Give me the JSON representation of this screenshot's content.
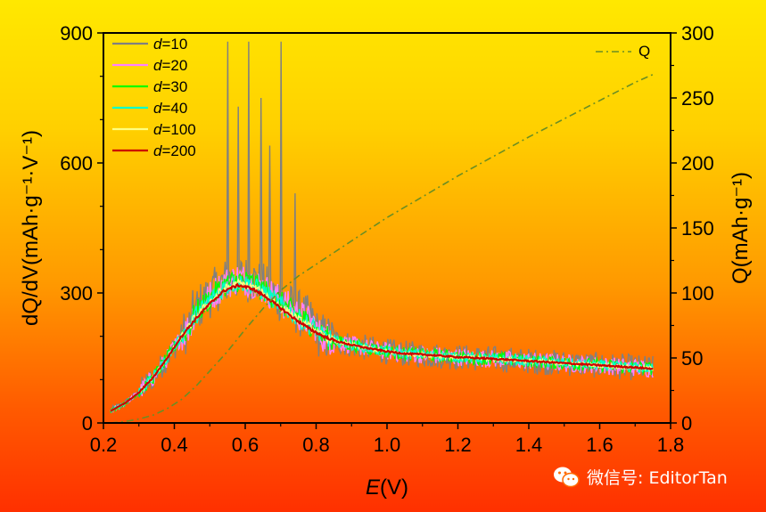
{
  "chart_data": {
    "type": "line",
    "xlabel": "E(V)",
    "xlabel_italic": "E",
    "xlabel_unit": "(V)",
    "ylabel_left": "dQ/dV(mAh·g⁻¹·V⁻¹)",
    "ylabel_right": "Q(mAh·g⁻¹)",
    "xlim": [
      0.2,
      1.8
    ],
    "ylim_left": [
      0,
      900
    ],
    "ylim_right": [
      0,
      300
    ],
    "xticks": [
      "0.2",
      "0.4",
      "0.6",
      "0.8",
      "1.0",
      "1.2",
      "1.4",
      "1.6",
      "1.8"
    ],
    "yticks_left": [
      "0",
      "300",
      "600",
      "900"
    ],
    "yticks_right": [
      "0",
      "50",
      "100",
      "150",
      "200",
      "250",
      "300"
    ],
    "legend_position": "top-left",
    "series": [
      {
        "name": "d=10",
        "label_italic": "d",
        "label_rest": "=10",
        "color": "#808080",
        "noise": 55,
        "spikes": [
          [
            0.55,
            880
          ],
          [
            0.61,
            880
          ],
          [
            0.7,
            880
          ],
          [
            0.645,
            750
          ],
          [
            0.58,
            730
          ],
          [
            0.67,
            640
          ],
          [
            0.74,
            530
          ]
        ]
      },
      {
        "name": "d=20",
        "label_italic": "d",
        "label_rest": "=20",
        "color": "#ff80ff",
        "noise": 38,
        "spikes": []
      },
      {
        "name": "d=30",
        "label_italic": "d",
        "label_rest": "=30",
        "color": "#00ff00",
        "noise": 28,
        "spikes": []
      },
      {
        "name": "d=40",
        "label_italic": "d",
        "label_rest": "=40",
        "color": "#00ffcc",
        "noise": 22,
        "spikes": []
      },
      {
        "name": "d=100",
        "label_italic": "d",
        "label_rest": "=100",
        "color": "#ffff80",
        "noise": 10,
        "spikes": []
      },
      {
        "name": "d=200",
        "label_italic": "d",
        "label_rest": "=200",
        "color": "#cc0000",
        "noise": 3,
        "spikes": []
      }
    ],
    "base_curve": {
      "x": [
        0.22,
        0.26,
        0.3,
        0.34,
        0.38,
        0.42,
        0.46,
        0.5,
        0.54,
        0.58,
        0.62,
        0.66,
        0.7,
        0.74,
        0.78,
        0.82,
        0.86,
        0.9,
        0.95,
        1.0,
        1.05,
        1.1,
        1.2,
        1.3,
        1.4,
        1.5,
        1.6,
        1.7,
        1.75
      ],
      "y": [
        28,
        45,
        70,
        105,
        150,
        200,
        240,
        275,
        305,
        318,
        310,
        290,
        265,
        240,
        218,
        200,
        188,
        180,
        172,
        165,
        160,
        158,
        152,
        148,
        143,
        138,
        133,
        128,
        125
      ]
    },
    "q_curve": {
      "name": "Q",
      "color": "#6b8e23",
      "x": [
        0.22,
        0.26,
        0.3,
        0.34,
        0.38,
        0.42,
        0.46,
        0.5,
        0.55,
        0.6,
        0.65,
        0.7,
        0.75,
        0.8,
        0.9,
        1.0,
        1.1,
        1.2,
        1.3,
        1.4,
        1.5,
        1.6,
        1.7,
        1.75
      ],
      "y": [
        0,
        1,
        3,
        6,
        11,
        18,
        28,
        40,
        55,
        72,
        88,
        102,
        113,
        122,
        140,
        158,
        174,
        190,
        205,
        220,
        234,
        248,
        262,
        268
      ]
    }
  },
  "watermark": {
    "text": "微信号: EditorTan",
    "icon": "wechat-icon"
  }
}
